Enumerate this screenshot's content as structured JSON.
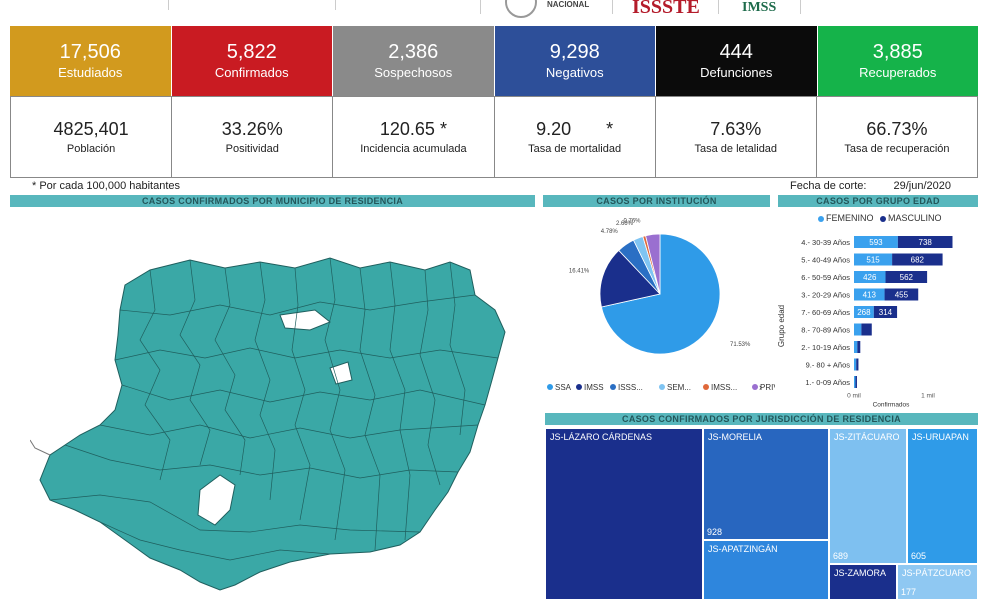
{
  "header": {
    "logos": [
      "NACIONAL",
      "ISSSTE",
      "IMSS"
    ],
    "colors": {
      "issste": "#b41c2b",
      "imss": "#1e6b4b"
    }
  },
  "kpis": [
    {
      "value": "17,506",
      "label": "Estudiados",
      "color": "#d29a1e"
    },
    {
      "value": "5,822",
      "label": "Confirmados",
      "color": "#c91b22"
    },
    {
      "value": "2,386",
      "label": "Sospechosos",
      "color": "#8a8a8a"
    },
    {
      "value": "9,298",
      "label": "Negativos",
      "color": "#2d4f99"
    },
    {
      "value": "444",
      "label": "Defunciones",
      "color": "#0b0b0b"
    },
    {
      "value": "3,885",
      "label": "Recuperados",
      "color": "#15b34a"
    }
  ],
  "rates": [
    {
      "value": "4825,401",
      "label": "Población"
    },
    {
      "value": "33.26%",
      "label": "Positividad"
    },
    {
      "value": "120.65 *",
      "label": "Incidencia acumulada"
    },
    {
      "value": "9.20       *",
      "label": "Tasa de mortalidad"
    },
    {
      "value": "7.63%",
      "label": "Tasa de letalidad"
    },
    {
      "value": "66.73%",
      "label": "Tasa de recuperación"
    }
  ],
  "footnote": "* Por cada 100,000 habitantes",
  "cutoff": {
    "label": "Fecha de corte:",
    "date": "29/jun/2020"
  },
  "sections": {
    "map": "CASOS CONFIRMADOS POR MUNICIPIO DE RESIDENCIA",
    "institution": "CASOS POR INSTITUCIÓN",
    "age": "CASOS POR GRUPO EDAD",
    "jurisdiction": "CASOS CONFIRMADOS POR JURISDICCIÓN DE RESIDENCIA"
  },
  "map_color": "#3aa8a6",
  "chart_data": [
    {
      "type": "pie",
      "title": "CASOS POR INSTITUCIÓN",
      "categories": [
        "SSA",
        "IMSS",
        "ISSS...",
        "SEM...",
        "IMSS...",
        "PRIV..."
      ],
      "values": [
        71.53,
        16.41,
        4.78,
        2.66,
        0.76,
        3.86
      ],
      "slice_labels": [
        "71.53%",
        "16.41%",
        "4.78%",
        "2.66%",
        "0.76%",
        ""
      ],
      "colors": [
        "#2f9be8",
        "#1a2f8c",
        "#2a6fc4",
        "#7fc4f2",
        "#e0683a",
        "#9a6fd0"
      ],
      "legend_more": "›"
    },
    {
      "type": "bar",
      "title": "CASOS POR GRUPO EDAD",
      "xlabel": "Confirmados",
      "ylabel": "Grupo edad",
      "xticks": [
        "0 mil",
        "1 mil"
      ],
      "series": [
        {
          "name": "FEMENINO",
          "color": "#3aa1ee"
        },
        {
          "name": "MASCULINO",
          "color": "#1a2f8c"
        }
      ],
      "rows": [
        {
          "label": "4.- 30-39 Años",
          "f": 593,
          "m": 738,
          "fl": "593",
          "ml": "738"
        },
        {
          "label": "5.- 40-49 Años",
          "f": 515,
          "m": 682,
          "fl": "515",
          "ml": "682"
        },
        {
          "label": "6.- 50-59 Años",
          "f": 426,
          "m": 562,
          "fl": "426",
          "ml": "562"
        },
        {
          "label": "3.- 20-29 Años",
          "f": 413,
          "m": 455,
          "fl": "413",
          "ml": "455"
        },
        {
          "label": "7.- 60-69 Años",
          "f": 268,
          "m": 314,
          "fl": "268",
          "ml": "314"
        },
        {
          "label": "8.- 70-89 Años",
          "f": 100,
          "m": 140,
          "fl": "",
          "ml": ""
        },
        {
          "label": "2.- 10-19 Años",
          "f": 45,
          "m": 40,
          "fl": "",
          "ml": ""
        },
        {
          "label": "9.- 80 + Años",
          "f": 30,
          "m": 30,
          "fl": "",
          "ml": ""
        },
        {
          "label": "1.- 0-09 Años",
          "f": 20,
          "m": 20,
          "fl": "",
          "ml": ""
        }
      ]
    }
  ],
  "jurisdictions": [
    {
      "name": "JS-LÁZARO CÁRDENAS",
      "value": "",
      "color": "#1a2f8c"
    },
    {
      "name": "JS-MORELIA",
      "value": "928",
      "color": "#2866bf"
    },
    {
      "name": "JS-APATZINGÁN",
      "value": "",
      "color": "#2e86dd"
    },
    {
      "name": "JS-ZITÁCUARO",
      "value": "689",
      "color": "#7ec0f0"
    },
    {
      "name": "JS-URUAPAN",
      "value": "605",
      "color": "#2f9be8"
    },
    {
      "name": "JS-ZAMORA",
      "value": "",
      "color": "#1a2f8c"
    },
    {
      "name": "JS-PÁTZCUARO",
      "value": "177",
      "color": "#8fc8f2"
    }
  ]
}
